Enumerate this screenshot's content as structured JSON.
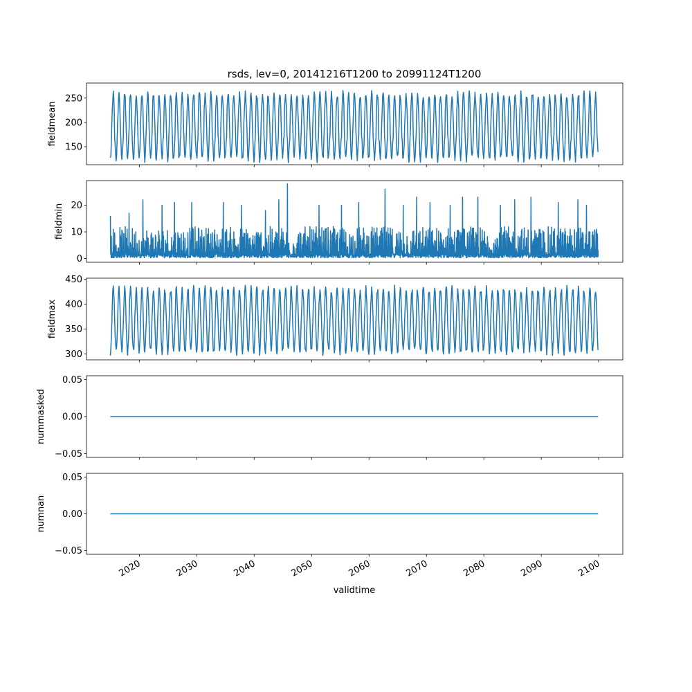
{
  "figure": {
    "title": "rsds, lev=0, 20141216T1200 to 20991124T1200",
    "xlabel": "validtime"
  },
  "colors": {
    "series": "#1f77b4",
    "axes": "#000000",
    "background": "#ffffff"
  },
  "chart_data": [
    {
      "type": "line",
      "ylabel": "fieldmean",
      "yticks": [
        150,
        200,
        250
      ],
      "ylim": [
        113,
        281
      ],
      "xticks": [
        2020,
        2030,
        2040,
        2050,
        2060,
        2070,
        2080,
        2090,
        2100
      ],
      "xlim": [
        2010.8,
        2104.2
      ],
      "tick_labels_visible": false,
      "grid": false,
      "series": [
        {
          "x_range": [
            2014.96,
            2099.9
          ],
          "pattern": "monthly seasonal cycle",
          "annual_min_approx": 125,
          "annual_max_approx": 258,
          "overall_min": 115,
          "overall_max": 270,
          "secondary_dip_approx": 165
        }
      ]
    },
    {
      "type": "line",
      "ylabel": "fieldmin",
      "yticks": [
        0,
        10,
        20
      ],
      "ylim": [
        -1.4,
        29.2
      ],
      "xticks": [
        2020,
        2030,
        2040,
        2050,
        2060,
        2070,
        2080,
        2090,
        2100
      ],
      "xlim": [
        2010.8,
        2104.2
      ],
      "tick_labels_visible": false,
      "grid": false,
      "series": [
        {
          "x_range": [
            2014.96,
            2099.9
          ],
          "pattern": "noisy",
          "typical_min": 0.3,
          "typical_max": 12,
          "spikes": [
            [
              2015.0,
              16
            ],
            [
              2018.2,
              17
            ],
            [
              2020.6,
              22
            ],
            [
              2024.0,
              20
            ],
            [
              2026.1,
              21
            ],
            [
              2029.1,
              21
            ],
            [
              2034.6,
              21
            ],
            [
              2037.8,
              20
            ],
            [
              2042.0,
              18
            ],
            [
              2044.3,
              22
            ],
            [
              2045.8,
              28
            ],
            [
              2051.3,
              20
            ],
            [
              2055.2,
              20
            ],
            [
              2058.2,
              21
            ],
            [
              2062.8,
              26
            ],
            [
              2066.0,
              20
            ],
            [
              2068.3,
              23
            ],
            [
              2070.6,
              21
            ],
            [
              2074.1,
              20
            ],
            [
              2076.3,
              23
            ],
            [
              2079.0,
              23
            ],
            [
              2082.9,
              20
            ],
            [
              2085.4,
              22
            ],
            [
              2088.2,
              23
            ],
            [
              2093.0,
              21
            ],
            [
              2096.4,
              22
            ],
            [
              2097.9,
              20
            ]
          ]
        }
      ]
    },
    {
      "type": "line",
      "ylabel": "fieldmax",
      "yticks": [
        300,
        350,
        400,
        450
      ],
      "ylim": [
        288,
        452
      ],
      "xticks": [
        2020,
        2030,
        2040,
        2050,
        2060,
        2070,
        2080,
        2090,
        2100
      ],
      "xlim": [
        2010.8,
        2104.2
      ],
      "tick_labels_visible": false,
      "grid": false,
      "series": [
        {
          "x_range": [
            2014.96,
            2099.9
          ],
          "pattern": "monthly seasonal cycle",
          "annual_min_approx": 304,
          "annual_max_approx": 430,
          "overall_min": 295,
          "overall_max": 445
        }
      ]
    },
    {
      "type": "line",
      "ylabel": "nummasked",
      "yticks": [
        -0.05,
        0.0,
        0.05
      ],
      "ytick_labels": [
        "−0.05",
        "0.00",
        "0.05"
      ],
      "ylim": [
        -0.055,
        0.055
      ],
      "xticks": [
        2020,
        2030,
        2040,
        2050,
        2060,
        2070,
        2080,
        2090,
        2100
      ],
      "xlim": [
        2010.8,
        2104.2
      ],
      "tick_labels_visible": false,
      "grid": false,
      "series": [
        {
          "x": [
            2014.96,
            2099.9
          ],
          "y": [
            0.0,
            0.0
          ]
        }
      ]
    },
    {
      "type": "line",
      "ylabel": "numnan",
      "yticks": [
        -0.05,
        0.0,
        0.05
      ],
      "ytick_labels": [
        "−0.05",
        "0.00",
        "0.05"
      ],
      "ylim": [
        -0.055,
        0.055
      ],
      "xticks": [
        2020,
        2030,
        2040,
        2050,
        2060,
        2070,
        2080,
        2090,
        2100
      ],
      "xtick_labels": [
        "2020",
        "2030",
        "2040",
        "2050",
        "2060",
        "2070",
        "2080",
        "2090",
        "2100"
      ],
      "xlim": [
        2010.8,
        2104.2
      ],
      "tick_labels_visible": true,
      "grid": false,
      "series": [
        {
          "x": [
            2014.96,
            2099.9
          ],
          "y": [
            0.0,
            0.0
          ]
        }
      ]
    }
  ]
}
